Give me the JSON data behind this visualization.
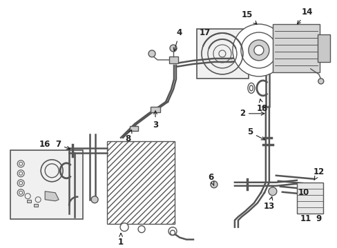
{
  "background_color": "#ffffff",
  "gray": "#555555",
  "dark": "#222222",
  "light_gray": "#cccccc",
  "box_fill": "#eeeeee",
  "figsize": [
    4.89,
    3.6
  ],
  "dpi": 100,
  "label_fontsize": 8.5
}
